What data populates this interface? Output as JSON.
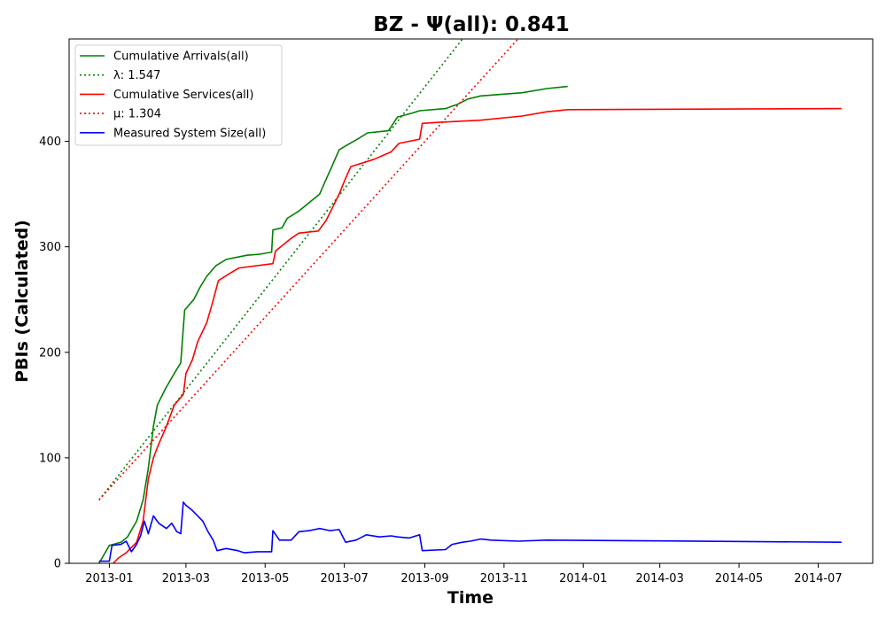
{
  "chart_data": {
    "type": "line",
    "title": "BZ -  Ψ(all): 0.841",
    "xlabel": "Time",
    "ylabel": "PBIs (Calculated)",
    "xlim": [
      "2012-12-01",
      "2014-08-12"
    ],
    "ylim": [
      0,
      497
    ],
    "x_ticks": [
      "2013-01",
      "2013-03",
      "2013-05",
      "2013-07",
      "2013-09",
      "2013-11",
      "2014-01",
      "2014-03",
      "2014-05",
      "2014-07"
    ],
    "x_tick_dates": [
      "2013-01-01",
      "2013-03-01",
      "2013-05-01",
      "2013-07-01",
      "2013-09-01",
      "2013-11-01",
      "2014-01-01",
      "2014-03-01",
      "2014-05-01",
      "2014-07-01"
    ],
    "y_ticks": [
      0,
      100,
      200,
      300,
      400
    ],
    "grid": false,
    "legend_position": "top-left",
    "series": [
      {
        "name": "Cumulative Arrivals(all)",
        "style": "solid",
        "color": "#008000",
        "points": [
          [
            "2012-12-24",
            0
          ],
          [
            "2013-01-01",
            17
          ],
          [
            "2013-01-10",
            20
          ],
          [
            "2013-01-15",
            25
          ],
          [
            "2013-01-22",
            40
          ],
          [
            "2013-01-27",
            60
          ],
          [
            "2013-01-31",
            90
          ],
          [
            "2013-02-04",
            130
          ],
          [
            "2013-02-07",
            150
          ],
          [
            "2013-02-13",
            165
          ],
          [
            "2013-02-20",
            180
          ],
          [
            "2013-02-25",
            190
          ],
          [
            "2013-02-28",
            240
          ],
          [
            "2013-03-07",
            250
          ],
          [
            "2013-03-12",
            262
          ],
          [
            "2013-03-17",
            272
          ],
          [
            "2013-03-24",
            282
          ],
          [
            "2013-04-01",
            288
          ],
          [
            "2013-04-17",
            292
          ],
          [
            "2013-04-27",
            293
          ],
          [
            "2013-05-06",
            295
          ],
          [
            "2013-05-07",
            316
          ],
          [
            "2013-05-14",
            318
          ],
          [
            "2013-05-18",
            327
          ],
          [
            "2013-05-27",
            334
          ],
          [
            "2013-06-04",
            342
          ],
          [
            "2013-06-12",
            350
          ],
          [
            "2013-06-17",
            364
          ],
          [
            "2013-06-21",
            375
          ],
          [
            "2013-06-27",
            392
          ],
          [
            "2013-07-04",
            397
          ],
          [
            "2013-07-11",
            402
          ],
          [
            "2013-07-19",
            408
          ],
          [
            "2013-08-04",
            410
          ],
          [
            "2013-08-11",
            423
          ],
          [
            "2013-08-23",
            427
          ],
          [
            "2013-08-28",
            429
          ],
          [
            "2013-09-17",
            431
          ],
          [
            "2013-09-26",
            435
          ],
          [
            "2013-10-04",
            440
          ],
          [
            "2013-10-14",
            443
          ],
          [
            "2013-11-15",
            446
          ],
          [
            "2013-12-04",
            450
          ],
          [
            "2013-12-20",
            452
          ]
        ]
      },
      {
        "name": "λ: 1.547",
        "style": "dotted",
        "color": "#008000",
        "points": [
          [
            "2012-12-24",
            60
          ],
          [
            "2013-10-02",
            500
          ]
        ]
      },
      {
        "name": "Cumulative Services(all)",
        "style": "solid",
        "color": "#ff0000",
        "points": [
          [
            "2013-01-04",
            0
          ],
          [
            "2013-01-08",
            5
          ],
          [
            "2013-01-14",
            10
          ],
          [
            "2013-01-22",
            20
          ],
          [
            "2013-01-27",
            40
          ],
          [
            "2013-01-31",
            80
          ],
          [
            "2013-02-04",
            100
          ],
          [
            "2013-02-08",
            113
          ],
          [
            "2013-02-14",
            130
          ],
          [
            "2013-02-20",
            150
          ],
          [
            "2013-02-27",
            160
          ],
          [
            "2013-03-01",
            180
          ],
          [
            "2013-03-06",
            193
          ],
          [
            "2013-03-10",
            210
          ],
          [
            "2013-03-17",
            228
          ],
          [
            "2013-03-21",
            245
          ],
          [
            "2013-03-26",
            268
          ],
          [
            "2013-04-04",
            275
          ],
          [
            "2013-04-11",
            280
          ],
          [
            "2013-05-07",
            284
          ],
          [
            "2013-05-09",
            296
          ],
          [
            "2013-05-21",
            308
          ],
          [
            "2013-05-27",
            313
          ],
          [
            "2013-06-11",
            315
          ],
          [
            "2013-06-17",
            325
          ],
          [
            "2013-06-21",
            335
          ],
          [
            "2013-06-27",
            350
          ],
          [
            "2013-07-02",
            365
          ],
          [
            "2013-07-06",
            376
          ],
          [
            "2013-07-24",
            383
          ],
          [
            "2013-08-06",
            390
          ],
          [
            "2013-08-12",
            398
          ],
          [
            "2013-08-28",
            402
          ],
          [
            "2013-08-30",
            417
          ],
          [
            "2013-09-12",
            418
          ],
          [
            "2013-10-14",
            420
          ],
          [
            "2013-11-15",
            424
          ],
          [
            "2013-12-04",
            428
          ],
          [
            "2013-12-20",
            430
          ],
          [
            "2014-07-19",
            431
          ]
        ]
      },
      {
        "name": "μ: 1.304",
        "style": "dotted",
        "color": "#ff0000",
        "points": [
          [
            "2012-12-24",
            60
          ],
          [
            "2013-11-14",
            500
          ]
        ]
      },
      {
        "name": "Measured System Size(all)",
        "style": "solid",
        "color": "#0000ff",
        "points": [
          [
            "2012-12-24",
            2
          ],
          [
            "2013-01-01",
            2
          ],
          [
            "2013-01-03",
            17
          ],
          [
            "2013-01-10",
            18
          ],
          [
            "2013-01-14",
            21
          ],
          [
            "2013-01-18",
            11
          ],
          [
            "2013-01-22",
            18
          ],
          [
            "2013-01-25",
            26
          ],
          [
            "2013-01-28",
            40
          ],
          [
            "2013-01-31",
            28
          ],
          [
            "2013-02-04",
            45
          ],
          [
            "2013-02-08",
            38
          ],
          [
            "2013-02-14",
            33
          ],
          [
            "2013-02-18",
            38
          ],
          [
            "2013-02-22",
            30
          ],
          [
            "2013-02-25",
            28
          ],
          [
            "2013-02-27",
            58
          ],
          [
            "2013-03-01",
            55
          ],
          [
            "2013-03-06",
            50
          ],
          [
            "2013-03-10",
            45
          ],
          [
            "2013-03-14",
            40
          ],
          [
            "2013-03-18",
            30
          ],
          [
            "2013-03-22",
            22
          ],
          [
            "2013-03-25",
            12
          ],
          [
            "2013-04-01",
            14
          ],
          [
            "2013-04-10",
            12
          ],
          [
            "2013-04-15",
            10
          ],
          [
            "2013-04-25",
            11
          ],
          [
            "2013-05-06",
            11
          ],
          [
            "2013-05-07",
            31
          ],
          [
            "2013-05-12",
            22
          ],
          [
            "2013-05-21",
            22
          ],
          [
            "2013-05-27",
            30
          ],
          [
            "2013-06-04",
            31
          ],
          [
            "2013-06-12",
            33
          ],
          [
            "2013-06-20",
            31
          ],
          [
            "2013-06-27",
            32
          ],
          [
            "2013-07-02",
            20
          ],
          [
            "2013-07-10",
            22
          ],
          [
            "2013-07-18",
            27
          ],
          [
            "2013-07-28",
            25
          ],
          [
            "2013-08-06",
            26
          ],
          [
            "2013-08-11",
            25
          ],
          [
            "2013-08-20",
            24
          ],
          [
            "2013-08-28",
            27
          ],
          [
            "2013-08-30",
            12
          ],
          [
            "2013-09-17",
            13
          ],
          [
            "2013-09-22",
            18
          ],
          [
            "2013-09-30",
            20
          ],
          [
            "2013-10-06",
            21
          ],
          [
            "2013-10-14",
            23
          ],
          [
            "2013-10-22",
            22
          ],
          [
            "2013-11-12",
            21
          ],
          [
            "2013-12-04",
            22
          ],
          [
            "2014-07-19",
            20
          ]
        ]
      }
    ]
  }
}
